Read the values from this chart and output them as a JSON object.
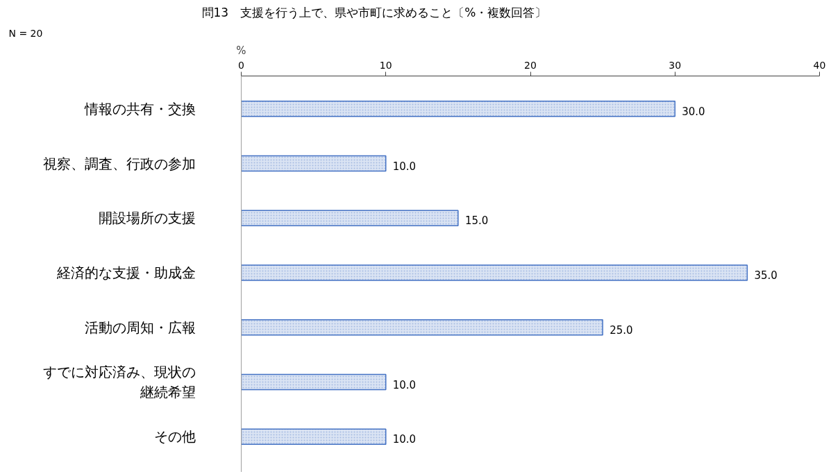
{
  "chart_data": {
    "type": "bar",
    "orientation": "horizontal",
    "title": "問13　支援を行う上で、県や市町に求めること〔%・複数回答〕",
    "xlabel": "%",
    "annotations": [
      "N = 20"
    ],
    "categories": [
      "情報の共有・交換",
      "視察、調査、行政の参加",
      "開設場所の支援",
      "経済的な支援・助成金",
      "活動の周知・広報",
      "すでに対応済み、現状の継続希望",
      "その他"
    ],
    "values": [
      30,
      10,
      15,
      35,
      25,
      10,
      10
    ],
    "value_labels": [
      "30.0",
      "10.0",
      "15.0",
      "35.0",
      "25.0",
      "10.0",
      "10.0"
    ],
    "color": "#4472c4",
    "xlim": [
      0,
      40
    ],
    "xticks": [
      0,
      10,
      20,
      30,
      40
    ],
    "grid": false
  }
}
